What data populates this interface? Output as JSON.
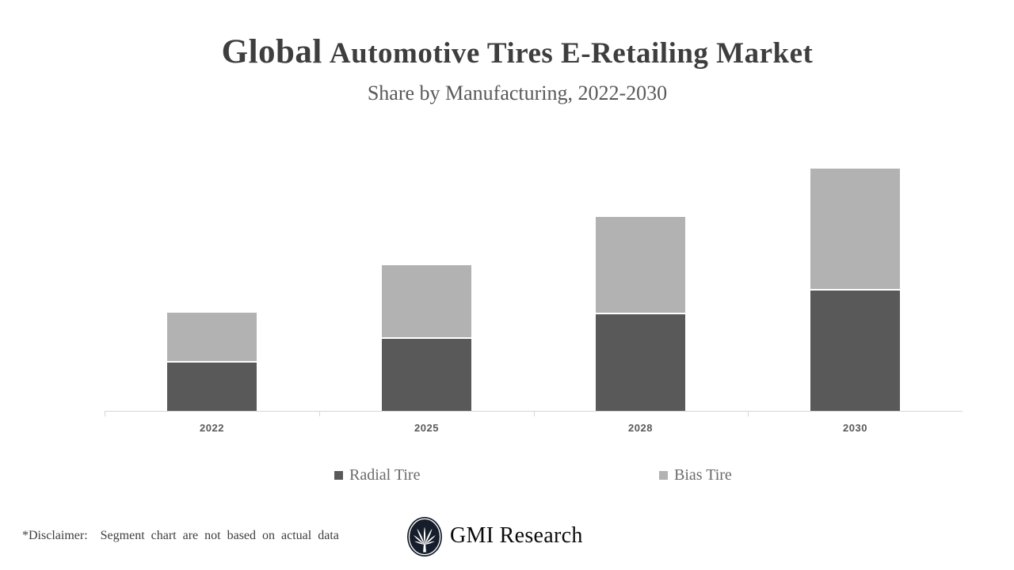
{
  "header": {
    "title_emphasis": "Global",
    "title_rest": "Automotive Tires E-Retailing Market",
    "subtitle": "Share by Manufacturing, 2022-2030"
  },
  "chart_data": {
    "type": "bar",
    "stacked": true,
    "title": "Global Automotive Tires E-Retailing Market",
    "subtitle": "Share by Manufacturing, 2022-2030",
    "categories": [
      "2022",
      "2025",
      "2028",
      "2030"
    ],
    "series": [
      {
        "name": "Radial Tire",
        "color": "#595959",
        "values": [
          2,
          3,
          4,
          5
        ]
      },
      {
        "name": "Bias Tire",
        "color": "#b2b2b2",
        "values": [
          2,
          3,
          4,
          5
        ]
      }
    ],
    "xlabel": "",
    "ylabel": "",
    "ylim": [
      0,
      10.9
    ],
    "value_axis_visible": false,
    "gridlines": false,
    "legend_position": "bottom",
    "value_units": "relative share (value axis not labeled on chart)"
  },
  "footer": {
    "disclaimer": "*Disclaimer:  Segment chart are not based on actual data",
    "logo_text": "GMI Research"
  },
  "colors": {
    "radial_tire": "#595959",
    "bias_tire": "#b2b2b2",
    "axis": "#d7d7d7",
    "title_text": "#3e3e3e",
    "subtitle_text": "#595959",
    "axis_label_text": "#595959",
    "legend_text": "#6b6b6b",
    "logo_bg": "#161d2b"
  }
}
